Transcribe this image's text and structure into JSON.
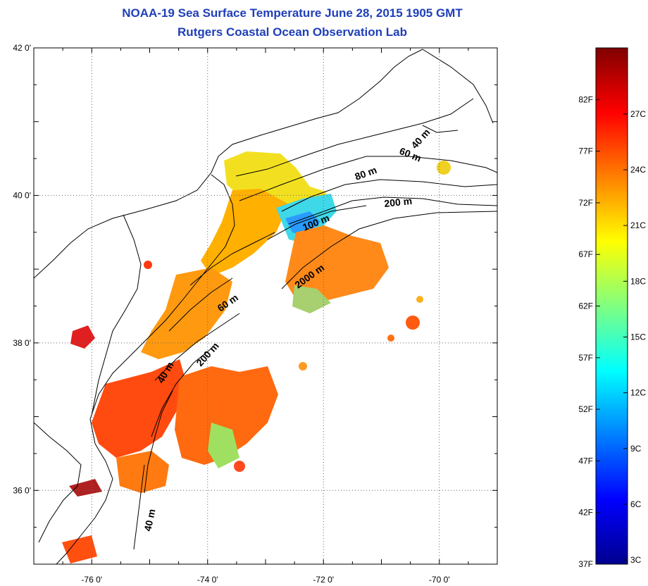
{
  "title": {
    "line1": "NOAA-19 Sea Surface Temperature June 28, 2015 1905 GMT",
    "line2": "Rutgers Coastal Ocean Observation Lab"
  },
  "map": {
    "lon_range": [
      -77.0,
      -69.0
    ],
    "lat_range": [
      35.0,
      42.0
    ],
    "grid": "dotted",
    "lon_ticks": [
      {
        "value": -76,
        "label": "-76 0'"
      },
      {
        "value": -74,
        "label": "-74 0'"
      },
      {
        "value": -72,
        "label": "-72 0'"
      },
      {
        "value": -70,
        "label": "-70 0'"
      }
    ],
    "lat_ticks": [
      {
        "value": 42,
        "label": "42 0'"
      },
      {
        "value": 40,
        "label": "40 0'"
      },
      {
        "value": 38,
        "label": "38 0'"
      },
      {
        "value": 36,
        "label": "36 0'"
      }
    ],
    "contour_labels": [
      {
        "text": "40 m"
      },
      {
        "text": "60 m"
      },
      {
        "text": "80 m"
      },
      {
        "text": "200 m"
      },
      {
        "text": "100 m"
      },
      {
        "text": "2000 m"
      },
      {
        "text": "60 m"
      },
      {
        "text": "200 m"
      },
      {
        "text": "40 m"
      },
      {
        "text": "40 m"
      }
    ]
  },
  "colorbar": {
    "fahrenheit_labels": [
      "82F",
      "77F",
      "72F",
      "67F",
      "62F",
      "57F",
      "52F",
      "47F",
      "42F",
      "37F"
    ],
    "celsius_labels": [
      "27C",
      "24C",
      "21C",
      "18C",
      "15C",
      "12C",
      "9C",
      "6C",
      "3C"
    ],
    "colors": [
      "#00008f",
      "#0000ff",
      "#0080ff",
      "#00ffff",
      "#80ff80",
      "#ffff00",
      "#ff8000",
      "#ff0000",
      "#800000"
    ]
  }
}
